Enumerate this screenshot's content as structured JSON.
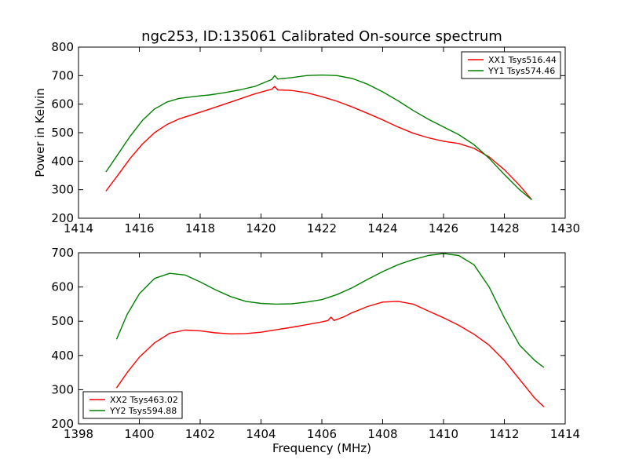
{
  "chart_data": [
    {
      "type": "line",
      "title": "ngc253, ID:135061 Calibrated On-source spectrum",
      "xlabel": "",
      "ylabel": "Power in Kelvin",
      "xlim": [
        1414,
        1430
      ],
      "ylim": [
        200,
        800
      ],
      "xticks": [
        "1414",
        "1416",
        "1418",
        "1420",
        "1422",
        "1424",
        "1426",
        "1428",
        "1430"
      ],
      "yticks": [
        "200",
        "300",
        "400",
        "500",
        "600",
        "700",
        "800"
      ],
      "grid": false,
      "legend_position": "top-right",
      "series": [
        {
          "name": "XX1 Tsys516.44",
          "color": "#ff0000",
          "x": [
            1414.9,
            1415.3,
            1415.7,
            1416.1,
            1416.5,
            1416.9,
            1417.3,
            1417.8,
            1418.3,
            1418.8,
            1419.3,
            1419.8,
            1420.2,
            1420.35,
            1420.45,
            1420.55,
            1421.0,
            1421.5,
            1422.0,
            1422.5,
            1423.0,
            1423.5,
            1424.0,
            1424.5,
            1425.0,
            1425.5,
            1426.0,
            1426.5,
            1427.0,
            1427.5,
            1428.0,
            1428.5,
            1428.9
          ],
          "y": [
            295,
            352,
            410,
            460,
            500,
            528,
            548,
            565,
            582,
            600,
            618,
            636,
            648,
            652,
            662,
            650,
            648,
            640,
            626,
            610,
            590,
            568,
            545,
            520,
            498,
            482,
            470,
            462,
            445,
            415,
            370,
            315,
            265
          ]
        },
        {
          "name": "YY1 Tsys574.46",
          "color": "#008000",
          "x": [
            1414.9,
            1415.3,
            1415.7,
            1416.1,
            1416.5,
            1416.9,
            1417.3,
            1417.8,
            1418.3,
            1418.8,
            1419.3,
            1419.8,
            1420.2,
            1420.35,
            1420.45,
            1420.55,
            1421.0,
            1421.5,
            1422.0,
            1422.5,
            1423.0,
            1423.5,
            1424.0,
            1424.5,
            1425.0,
            1425.5,
            1426.0,
            1426.5,
            1427.0,
            1427.5,
            1428.0,
            1428.5,
            1428.9
          ],
          "y": [
            362,
            425,
            488,
            543,
            583,
            607,
            620,
            627,
            632,
            640,
            650,
            662,
            680,
            686,
            700,
            688,
            693,
            700,
            702,
            700,
            690,
            670,
            643,
            612,
            578,
            547,
            520,
            493,
            458,
            410,
            353,
            300,
            265
          ]
        }
      ]
    },
    {
      "type": "line",
      "title": "",
      "xlabel": "Frequency (MHz)",
      "ylabel": "",
      "xlim": [
        1398,
        1414
      ],
      "ylim": [
        200,
        700
      ],
      "xticks": [
        "1398",
        "1400",
        "1402",
        "1404",
        "1406",
        "1408",
        "1410",
        "1412",
        "1414"
      ],
      "yticks": [
        "200",
        "300",
        "400",
        "500",
        "600",
        "700"
      ],
      "grid": false,
      "legend_position": "bottom-left",
      "series": [
        {
          "name": "XX2 Tsys463.02",
          "color": "#ff0000",
          "x": [
            1399.25,
            1399.6,
            1400.0,
            1400.5,
            1401.0,
            1401.5,
            1402.0,
            1402.5,
            1403.0,
            1403.5,
            1404.0,
            1404.5,
            1405.0,
            1405.5,
            1406.0,
            1406.2,
            1406.3,
            1406.4,
            1406.7,
            1407.0,
            1407.5,
            1408.0,
            1408.5,
            1409.0,
            1409.5,
            1410.0,
            1410.5,
            1411.0,
            1411.5,
            1412.0,
            1412.5,
            1413.0,
            1413.3
          ],
          "y": [
            305,
            350,
            395,
            437,
            465,
            474,
            472,
            466,
            463,
            464,
            468,
            475,
            482,
            490,
            498,
            502,
            512,
            502,
            512,
            525,
            543,
            556,
            558,
            550,
            530,
            510,
            488,
            462,
            430,
            385,
            330,
            275,
            250
          ]
        },
        {
          "name": "YY2 Tsys594.88",
          "color": "#008000",
          "x": [
            1399.25,
            1399.6,
            1400.0,
            1400.5,
            1401.0,
            1401.5,
            1402.0,
            1402.5,
            1403.0,
            1403.5,
            1404.0,
            1404.5,
            1405.0,
            1405.5,
            1406.0,
            1406.5,
            1407.0,
            1407.5,
            1408.0,
            1408.5,
            1409.0,
            1409.5,
            1410.0,
            1410.5,
            1411.0,
            1411.5,
            1412.0,
            1412.5,
            1413.0,
            1413.3
          ],
          "y": [
            447,
            520,
            580,
            625,
            640,
            635,
            615,
            592,
            572,
            558,
            552,
            550,
            551,
            556,
            563,
            578,
            598,
            622,
            645,
            665,
            680,
            692,
            698,
            692,
            665,
            600,
            510,
            430,
            385,
            365
          ]
        }
      ]
    }
  ]
}
